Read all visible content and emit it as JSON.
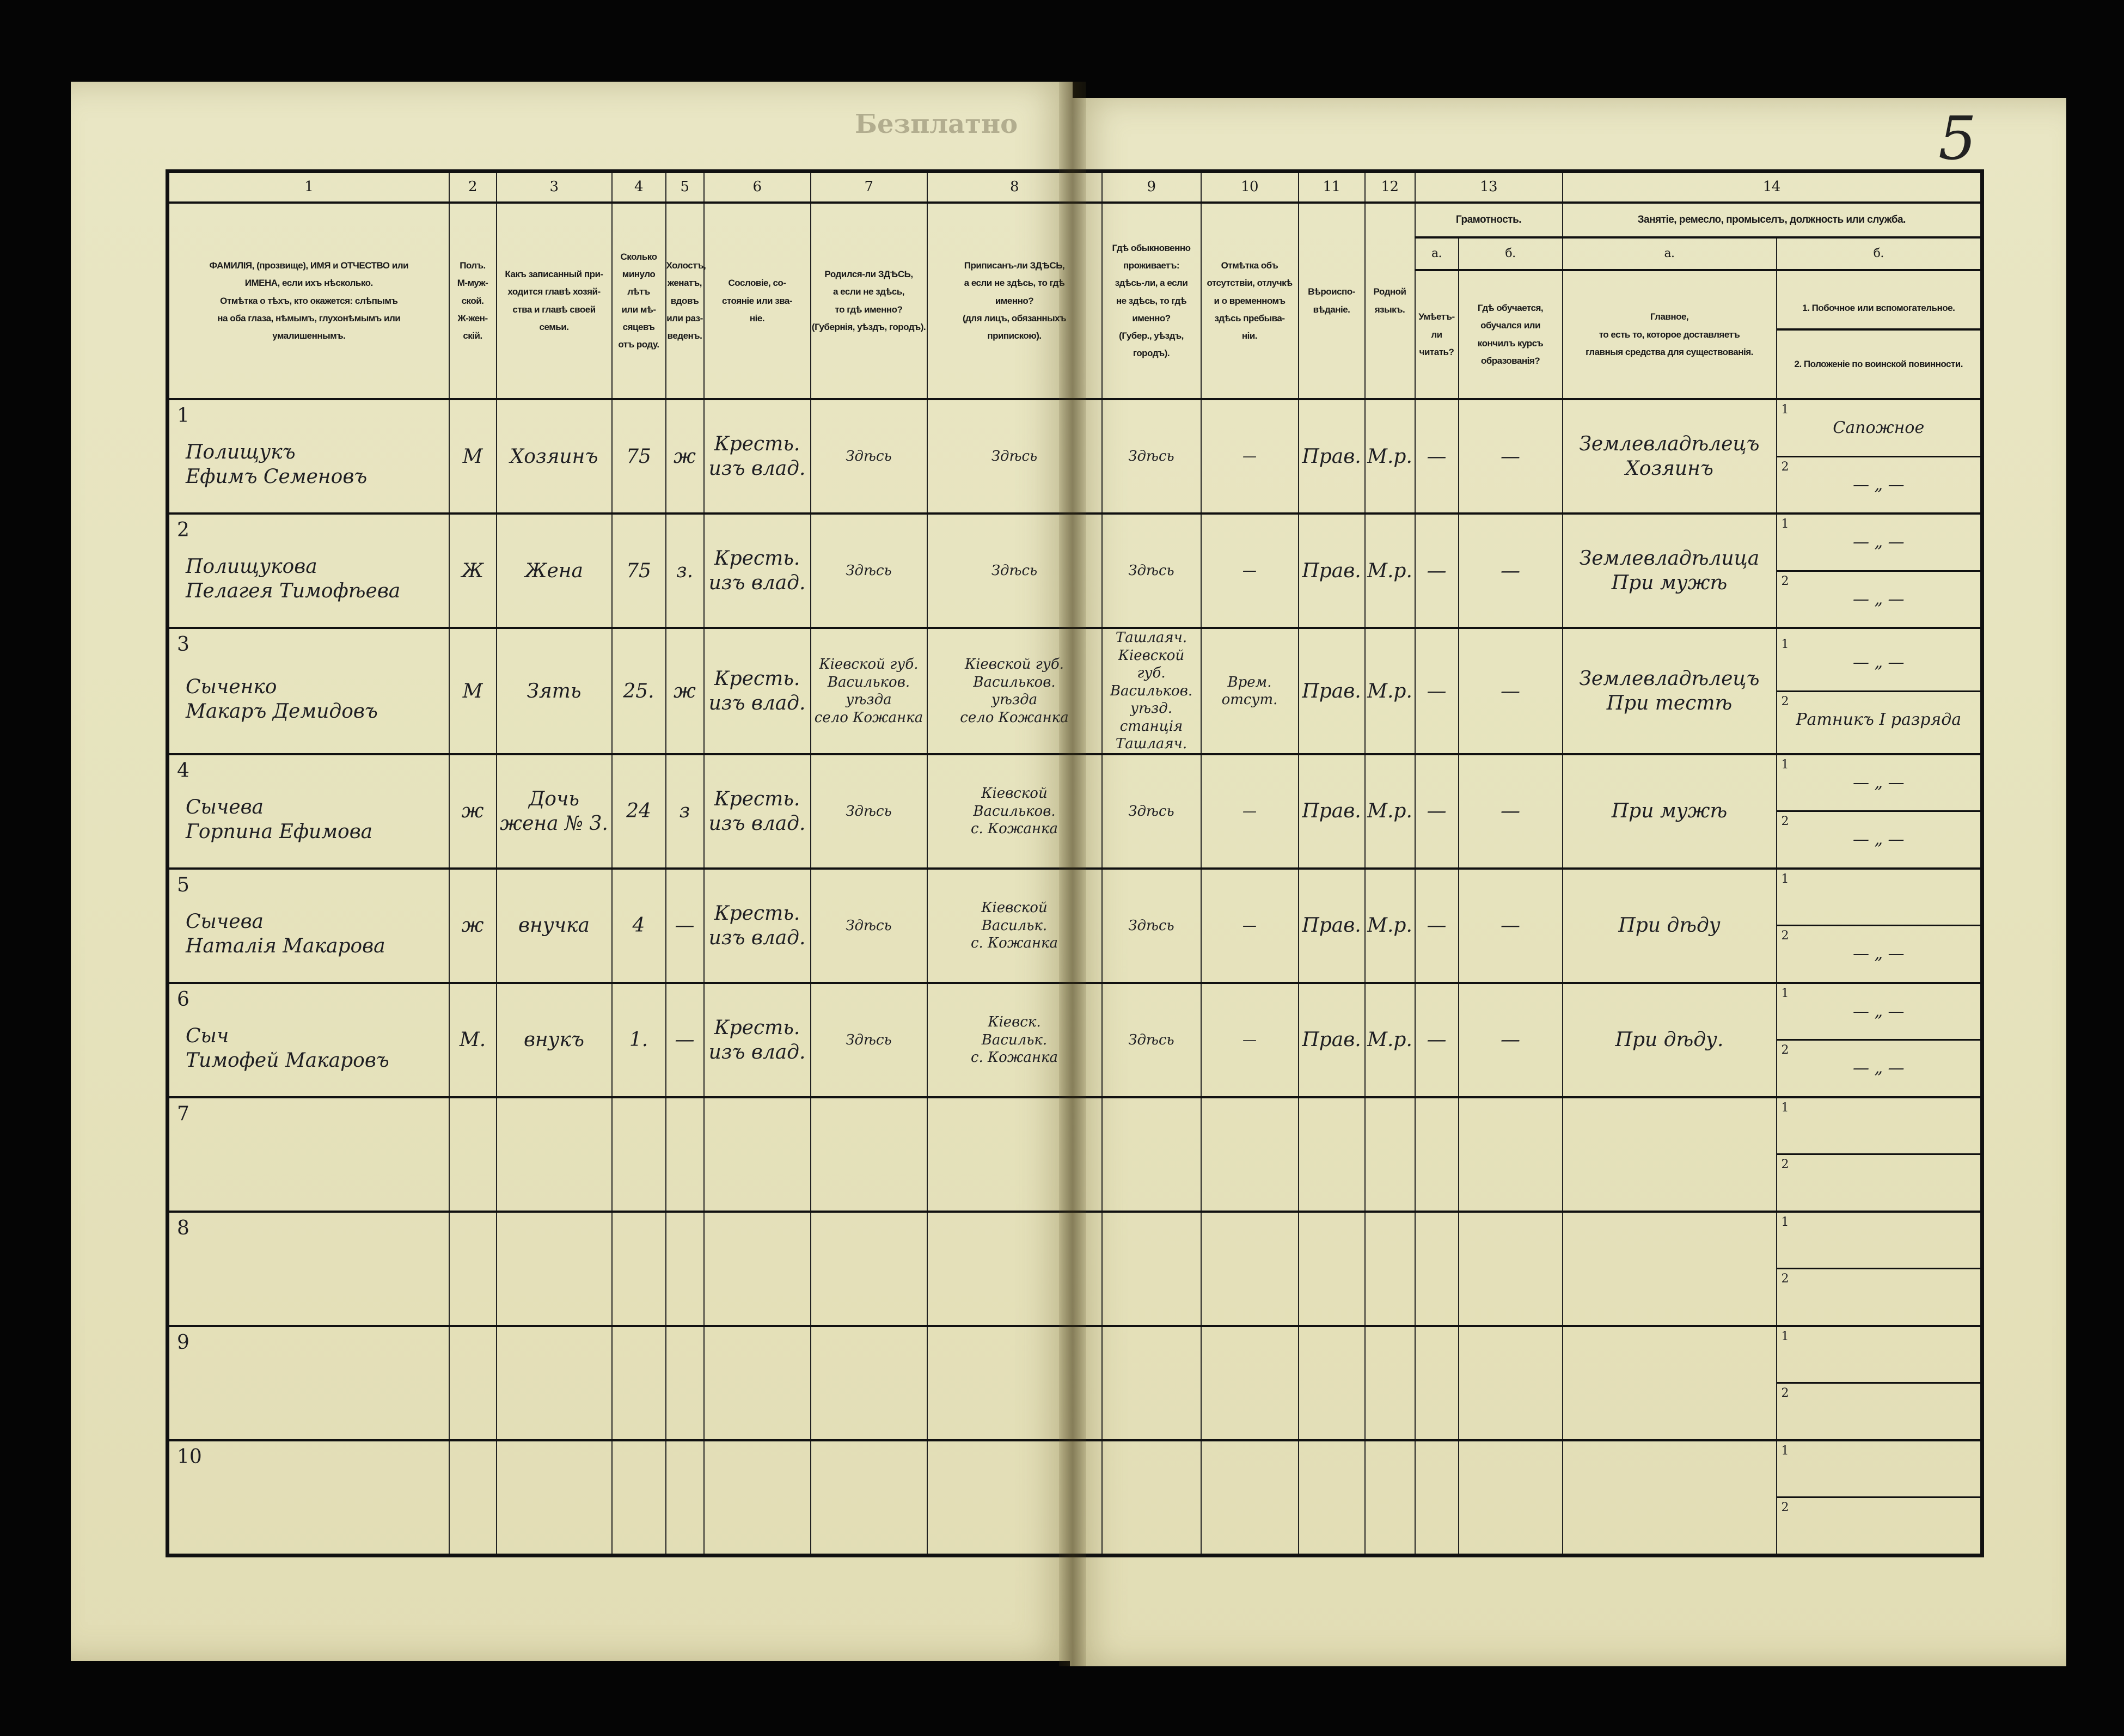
{
  "page": {
    "stamp": "Безплатно",
    "page_number": "5"
  },
  "header": {
    "numbers": [
      "1",
      "2",
      "3",
      "4",
      "5",
      "6",
      "7",
      "8",
      "9",
      "10",
      "11",
      "12",
      "13",
      "14"
    ],
    "columns": [
      "ФАМИЛІЯ, (прозвище), ИМЯ и ОТЧЕСТВО или\nИМЕНА, если ихъ нѣсколько.\nОтмѣтка о тѣхъ, кто окажется: слѣпымъ\nна оба глаза, нѣмымъ, глухонѣмымъ или\nумалишеннымъ.",
      "Полъ.\nМ-муж-\nской.\nЖ-жен-\nскій.",
      "Какъ записанный при-\nходится главѣ хозяй-\nства и главѣ своей\nсемьи.",
      "Сколько\nминуло\nлѣтъ\nили мѣ-\nсяцевъ\nотъ роду.",
      "Холостъ,\nженатъ,\nвдовъ\nили раз-\nведенъ.",
      "Сословіе, со-\nстояніе или зва-\nніе.",
      "Родился-ли ЗДѢСЬ,\nа если не здѣсь,\nто гдѣ именно?\n(Губернія, уѣздъ, городъ).",
      "Приписанъ-ли ЗДѢСЬ,\nа если не здѣсь, то гдѣ\nименно?\n(для лицъ, обязанныхъ\nприпискою).",
      "Гдѣ обыкновенно\nпроживаетъ:\nздѣсь-ли, а если\nне здѣсь, то гдѣ\nименно?\n(Губер., уѣздъ, городъ).",
      "Отмѣтка объ\nотсутствіи, отлучкѣ\nи о временномъ\nздѣсь пребыва-\nніи.",
      "Вѣроиспо-\nвѣданіе.",
      "Родной\nязыкъ."
    ],
    "literacy": {
      "title": "Грамотность.",
      "a": "а.",
      "b": "б.",
      "a_desc": "Умѣетъ-\nли\nчитать?",
      "b_desc": "Гдѣ обучается,\nобучался или\nкончилъ курсъ\nобразованія?"
    },
    "occupation": {
      "title": "Занятіе, ремесло, промыселъ, должность или служба.",
      "a": "а.",
      "b": "б.",
      "a_desc": "Главное,\nто есть то, которое доставляетъ\nглавныя средства для существованія.",
      "b1_desc": "1. Побочное или вспомогательное.",
      "b2_desc": "2. Положеніе по воинской повинности."
    }
  },
  "rows": [
    {
      "n": "1",
      "name": "Полищукъ\nЕфимъ Семеновъ",
      "sex": "М",
      "relation": "Хозяинъ",
      "age": "75",
      "marital": "ж",
      "estate": "Кресть.\nизъ влад.",
      "born": "Здѣсь",
      "registered": "Здѣсь",
      "resides": "Здѣсь",
      "absence": "—",
      "religion": "Прав.",
      "language": "М.р.",
      "lit_a": "—",
      "lit_b": "—",
      "occ_main": "Землевладѣлецъ\nХозяинъ",
      "occ_b1": "Сапожное",
      "occ_b2": "— „ —"
    },
    {
      "n": "2",
      "name": "Полищукова\nПелагея Тимофѣева",
      "sex": "Ж",
      "relation": "Жена",
      "age": "75",
      "marital": "з.",
      "estate": "Кресть.\nизъ влад.",
      "born": "Здѣсь",
      "registered": "Здѣсь",
      "resides": "Здѣсь",
      "absence": "—",
      "religion": "Прав.",
      "language": "М.р.",
      "lit_a": "—",
      "lit_b": "—",
      "occ_main": "Землевладѣлица\nПри мужѣ",
      "occ_b1": "— „ —",
      "occ_b2": "— „ —"
    },
    {
      "n": "3",
      "name": "Сыченко\nМакаръ Демидовъ",
      "sex": "М",
      "relation": "Зять",
      "age": "25.",
      "marital": "ж",
      "estate": "Кресть.\nизъ влад.",
      "born": "Кіевской губ.\nВасильков.\nуѣзда\nсело Кожанка",
      "registered": "Кіевской губ.\nВасильков.\nуѣзда\nсело Кожанка",
      "resides": "Ташлаяч.\nКіевской губ.\nВасильков. уѣзд.\nстанція Ташлаяч.",
      "absence": "Врем.\nотсут.",
      "religion": "Прав.",
      "language": "М.р.",
      "lit_a": "—",
      "lit_b": "—",
      "occ_main": "Землевладѣлецъ\nПри тестѣ",
      "occ_b1": "— „ —",
      "occ_b2": "Ратникъ I разряда"
    },
    {
      "n": "4",
      "name": "Сычева\nГорпина Ефимова",
      "sex": "ж",
      "relation": "Дочь\nжена № 3.",
      "age": "24",
      "marital": "з",
      "estate": "Кресть.\nизъ влад.",
      "born": "Здѣсь",
      "registered": "Кіевской\nВасильков.\nс. Кожанка",
      "resides": "Здѣсь",
      "absence": "—",
      "religion": "Прав.",
      "language": "М.р.",
      "lit_a": "—",
      "lit_b": "—",
      "occ_main": "При мужѣ",
      "occ_b1": "— „ —",
      "occ_b2": "— „ —"
    },
    {
      "n": "5",
      "name": "Сычева\nНаталія Макарова",
      "sex": "ж",
      "relation": "внучка",
      "age": "4",
      "marital": "—",
      "estate": "Кресть.\nизъ влад.",
      "born": "Здѣсь",
      "registered": "Кіевской\nВасильк.\nс. Кожанка",
      "resides": "Здѣсь",
      "absence": "—",
      "religion": "Прав.",
      "language": "М.р.",
      "lit_a": "—",
      "lit_b": "—",
      "occ_main": "При дѣду",
      "occ_b1": "",
      "occ_b2": "— „ —"
    },
    {
      "n": "6",
      "name": "Сыч\nТимофей Макаровъ",
      "sex": "М.",
      "relation": "внукъ",
      "age": "1.",
      "marital": "—",
      "estate": "Кресть.\nизъ влад.",
      "born": "Здѣсь",
      "registered": "Кіевск.\nВасильк.\nс. Кожанка",
      "resides": "Здѣсь",
      "absence": "—",
      "religion": "Прав.",
      "language": "М.р.",
      "lit_a": "—",
      "lit_b": "—",
      "occ_main": "При дѣду.",
      "occ_b1": "— „ —",
      "occ_b2": "— „ —"
    },
    {
      "n": "7"
    },
    {
      "n": "8"
    },
    {
      "n": "9"
    },
    {
      "n": "10"
    }
  ],
  "sub_labels": {
    "first": "1",
    "second": "2"
  }
}
